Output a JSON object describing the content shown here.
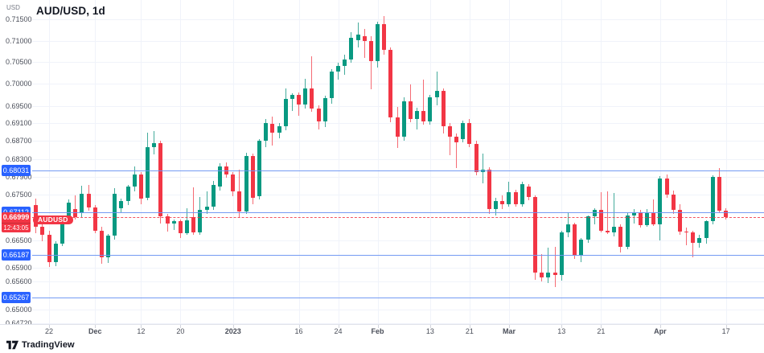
{
  "header": {
    "symbol_title": "AUD/USD, 1d"
  },
  "price_axis": {
    "currency": "USD",
    "ticks": [
      "0.71500",
      "0.71000",
      "0.70500",
      "0.70000",
      "0.69500",
      "0.69100",
      "0.68700",
      "0.68300",
      "0.67900",
      "0.67500",
      "0.66500",
      "0.65900",
      "0.65600",
      "0.65000",
      "0.64720"
    ]
  },
  "time_axis": {
    "ticks": [
      {
        "i": 2,
        "label": "22",
        "bold": false
      },
      {
        "i": 9,
        "label": "Dec",
        "bold": true
      },
      {
        "i": 16,
        "label": "12",
        "bold": false
      },
      {
        "i": 22,
        "label": "20",
        "bold": false
      },
      {
        "i": 30,
        "label": "2023",
        "bold": true
      },
      {
        "i": 40,
        "label": "16",
        "bold": false
      },
      {
        "i": 46,
        "label": "24",
        "bold": false
      },
      {
        "i": 52,
        "label": "Feb",
        "bold": true
      },
      {
        "i": 60,
        "label": "13",
        "bold": false
      },
      {
        "i": 66,
        "label": "21",
        "bold": false
      },
      {
        "i": 72,
        "label": "Mar",
        "bold": true
      },
      {
        "i": 80,
        "label": "13",
        "bold": false
      },
      {
        "i": 86,
        "label": "21",
        "bold": false
      },
      {
        "i": 95,
        "label": "Apr",
        "bold": true
      },
      {
        "i": 105,
        "label": "17",
        "bold": false
      }
    ]
  },
  "price_levels": [
    {
      "label": "0.68031",
      "value": 0.68031
    },
    {
      "label": "0.67112",
      "value": 0.67112
    },
    {
      "label": "0.66187",
      "value": 0.66187
    },
    {
      "label": "0.65267",
      "value": 0.65267
    }
  ],
  "current_price": {
    "label": "0.66999",
    "value": 0.66999,
    "countdown": "12:43:05",
    "symbol_pill": "AUDUSD"
  },
  "footer": {
    "brand": "TradingView"
  },
  "colors": {
    "up": "#089981",
    "down": "#f23645",
    "up_wick": "#45ab9c",
    "down_wick": "#f56b74",
    "level_line": "#6e96f2",
    "badge_blue": "#2962ff",
    "badge_red": "#f23645",
    "grid": "#f0f3fa",
    "axis_text": "#4a4e59",
    "title_text": "#131722"
  },
  "chart_data": {
    "type": "candlestick",
    "symbol": "AUD/USD",
    "interval": "1d",
    "quote_currency": "USD",
    "title": "AUD/USD, 1d",
    "y_range": [
      0.6472,
      0.7157
    ],
    "grid": true,
    "price_scale": "left",
    "horizontal_levels": [
      0.68031,
      0.67112,
      0.66187,
      0.65267
    ],
    "last_price": 0.66999,
    "columns": [
      "date",
      "open",
      "high",
      "low",
      "close"
    ],
    "candles": [
      [
        "Nov 18",
        0.6727,
        0.6742,
        0.6665,
        0.668
      ],
      [
        "Nov 21",
        0.668,
        0.6692,
        0.6648,
        0.6662
      ],
      [
        "Nov 22",
        0.6662,
        0.667,
        0.6592,
        0.6603
      ],
      [
        "Nov 23",
        0.6603,
        0.6648,
        0.6594,
        0.6642
      ],
      [
        "Nov 24",
        0.6642,
        0.67,
        0.6638,
        0.6695
      ],
      [
        "Nov 25",
        0.6695,
        0.674,
        0.669,
        0.6733
      ],
      [
        "Nov 28",
        0.6718,
        0.6748,
        0.6696,
        0.67
      ],
      [
        "Nov 29",
        0.671,
        0.677,
        0.67,
        0.6752
      ],
      [
        "Nov 30",
        0.6752,
        0.6772,
        0.6715,
        0.6722
      ],
      [
        "Dec 1",
        0.6722,
        0.6728,
        0.6666,
        0.667
      ],
      [
        "Dec 2",
        0.667,
        0.668,
        0.6598,
        0.6613
      ],
      [
        "Dec 5",
        0.6613,
        0.6664,
        0.66,
        0.666
      ],
      [
        "Dec 6",
        0.666,
        0.6765,
        0.6652,
        0.6752
      ],
      [
        "Dec 7",
        0.672,
        0.6741,
        0.6712,
        0.6736
      ],
      [
        "Dec 8",
        0.6736,
        0.6772,
        0.6728,
        0.6768
      ],
      [
        "Dec 9",
        0.6768,
        0.6813,
        0.6758,
        0.6795
      ],
      [
        "Dec 12",
        0.6795,
        0.6801,
        0.6729,
        0.6742
      ],
      [
        "Dec 13",
        0.6744,
        0.6889,
        0.6738,
        0.6856
      ],
      [
        "Dec 14",
        0.6856,
        0.6893,
        0.684,
        0.6866
      ],
      [
        "Dec 15",
        0.6866,
        0.6871,
        0.6687,
        0.6702
      ],
      [
        "Dec 16",
        0.6702,
        0.6707,
        0.6669,
        0.6686
      ],
      [
        "Dec 19",
        0.6686,
        0.6695,
        0.6672,
        0.6692
      ],
      [
        "Dec 20",
        0.6692,
        0.6696,
        0.6654,
        0.6665
      ],
      [
        "Dec 21",
        0.6665,
        0.6721,
        0.6661,
        0.6693
      ],
      [
        "Dec 22",
        0.67,
        0.6767,
        0.6662,
        0.6667
      ],
      [
        "Dec 23",
        0.6667,
        0.6745,
        0.6661,
        0.6716
      ],
      [
        "Dec 27",
        0.6716,
        0.6758,
        0.6708,
        0.6723
      ],
      [
        "Dec 28",
        0.6723,
        0.6781,
        0.6716,
        0.6772
      ],
      [
        "Dec 29",
        0.6768,
        0.682,
        0.676,
        0.6813
      ],
      [
        "Dec 30",
        0.6813,
        0.6822,
        0.6788,
        0.6795
      ],
      [
        "Jan 2",
        0.6795,
        0.68,
        0.6746,
        0.6758
      ],
      [
        "Jan 3",
        0.6758,
        0.6806,
        0.6699,
        0.6713
      ],
      [
        "Jan 4",
        0.6713,
        0.6844,
        0.6708,
        0.6837
      ],
      [
        "Jan 5",
        0.6837,
        0.6841,
        0.6729,
        0.6744
      ],
      [
        "Jan 6",
        0.6746,
        0.6875,
        0.674,
        0.6871
      ],
      [
        "Jan 9",
        0.6871,
        0.692,
        0.6856,
        0.691
      ],
      [
        "Jan 10",
        0.6908,
        0.6926,
        0.6859,
        0.6889
      ],
      [
        "Jan 11",
        0.6889,
        0.6911,
        0.6877,
        0.6904
      ],
      [
        "Jan 12",
        0.6904,
        0.6989,
        0.6894,
        0.6965
      ],
      [
        "Jan 13",
        0.6965,
        0.6979,
        0.6938,
        0.6974
      ],
      [
        "Jan 16",
        0.6974,
        0.6981,
        0.6928,
        0.6952
      ],
      [
        "Jan 17",
        0.6952,
        0.7012,
        0.6943,
        0.6989
      ],
      [
        "Jan 18",
        0.6989,
        0.7063,
        0.6936,
        0.6944
      ],
      [
        "Jan 19",
        0.6944,
        0.6951,
        0.6896,
        0.6915
      ],
      [
        "Jan 20",
        0.6915,
        0.6973,
        0.6902,
        0.6967
      ],
      [
        "Jan 23",
        0.6967,
        0.7034,
        0.6955,
        0.7029
      ],
      [
        "Jan 24",
        0.7029,
        0.7049,
        0.701,
        0.7042
      ],
      [
        "Jan 25",
        0.7042,
        0.7067,
        0.7021,
        0.7057
      ],
      [
        "Jan 26",
        0.7057,
        0.7119,
        0.7048,
        0.7106
      ],
      [
        "Jan 27",
        0.7102,
        0.7143,
        0.7084,
        0.7115
      ],
      [
        "Jan 30",
        0.7111,
        0.7127,
        0.706,
        0.71
      ],
      [
        "Jan 31",
        0.71,
        0.7111,
        0.6988,
        0.7053
      ],
      [
        "Feb 1",
        0.7053,
        0.7144,
        0.7038,
        0.7138
      ],
      [
        "Feb 2",
        0.7138,
        0.7157,
        0.7068,
        0.7079
      ],
      [
        "Feb 3",
        0.7079,
        0.7085,
        0.6913,
        0.6924
      ],
      [
        "Feb 6",
        0.6924,
        0.6947,
        0.6854,
        0.6879
      ],
      [
        "Feb 7",
        0.6879,
        0.6969,
        0.6871,
        0.6961
      ],
      [
        "Feb 8",
        0.6961,
        0.6999,
        0.6912,
        0.6919
      ],
      [
        "Feb 9",
        0.6919,
        0.6945,
        0.6897,
        0.6939
      ],
      [
        "Feb 10",
        0.6939,
        0.7009,
        0.6907,
        0.6914
      ],
      [
        "Feb 13",
        0.6914,
        0.6974,
        0.6907,
        0.6969
      ],
      [
        "Feb 14",
        0.6969,
        0.7029,
        0.6951,
        0.6984
      ],
      [
        "Feb 15",
        0.6984,
        0.6989,
        0.6887,
        0.6904
      ],
      [
        "Feb 16",
        0.6904,
        0.6911,
        0.6839,
        0.6879
      ],
      [
        "Feb 17",
        0.6879,
        0.6887,
        0.6809,
        0.6868
      ],
      [
        "Feb 20",
        0.6874,
        0.6917,
        0.6867,
        0.6911
      ],
      [
        "Feb 21",
        0.6911,
        0.6919,
        0.6857,
        0.6864
      ],
      [
        "Feb 22",
        0.6864,
        0.6871,
        0.6794,
        0.6801
      ],
      [
        "Feb 23",
        0.6801,
        0.6841,
        0.6775,
        0.6806
      ],
      [
        "Feb 24",
        0.6806,
        0.6811,
        0.6707,
        0.6719
      ],
      [
        "Feb 27",
        0.6719,
        0.6744,
        0.6704,
        0.6736
      ],
      [
        "Feb 28",
        0.6736,
        0.6749,
        0.6719,
        0.6729
      ],
      [
        "Mar 1",
        0.6729,
        0.6779,
        0.6723,
        0.6756
      ],
      [
        "Mar 2",
        0.6756,
        0.6761,
        0.6723,
        0.6729
      ],
      [
        "Mar 3",
        0.6729,
        0.6779,
        0.6724,
        0.6773
      ],
      [
        "Mar 6",
        0.6769,
        0.6773,
        0.6737,
        0.6745
      ],
      [
        "Mar 7",
        0.6745,
        0.6749,
        0.6565,
        0.6579
      ],
      [
        "Mar 8",
        0.6579,
        0.6619,
        0.6561,
        0.6569
      ],
      [
        "Mar 9",
        0.6569,
        0.6633,
        0.6557,
        0.6579
      ],
      [
        "Mar 10",
        0.6579,
        0.6635,
        0.6549,
        0.6575
      ],
      [
        "Mar 13",
        0.6575,
        0.6671,
        0.6563,
        0.6667
      ],
      [
        "Mar 14",
        0.6667,
        0.6712,
        0.6657,
        0.6685
      ],
      [
        "Mar 15",
        0.6685,
        0.6689,
        0.6609,
        0.6617
      ],
      [
        "Mar 16",
        0.6617,
        0.6654,
        0.6603,
        0.6652
      ],
      [
        "Mar 17",
        0.6652,
        0.6705,
        0.6645,
        0.6703
      ],
      [
        "Mar 20",
        0.6703,
        0.6721,
        0.6685,
        0.6717
      ],
      [
        "Mar 21",
        0.6717,
        0.6755,
        0.6667,
        0.6671
      ],
      [
        "Mar 22",
        0.6671,
        0.6757,
        0.6663,
        0.6667
      ],
      [
        "Mar 23",
        0.6667,
        0.6754,
        0.6659,
        0.6679
      ],
      [
        "Mar 24",
        0.6679,
        0.6684,
        0.6624,
        0.6636
      ],
      [
        "Mar 27",
        0.6636,
        0.6711,
        0.6631,
        0.6704
      ],
      [
        "Mar 28",
        0.6704,
        0.6719,
        0.6687,
        0.6712
      ],
      [
        "Mar 29",
        0.6712,
        0.6717,
        0.6677,
        0.6683
      ],
      [
        "Mar 30",
        0.6683,
        0.6719,
        0.6679,
        0.671
      ],
      [
        "Mar 31",
        0.671,
        0.6739,
        0.6681,
        0.6685
      ],
      [
        "Apr 3",
        0.6685,
        0.6792,
        0.6649,
        0.6786
      ],
      [
        "Apr 4",
        0.6786,
        0.6795,
        0.6743,
        0.675
      ],
      [
        "Apr 5",
        0.675,
        0.6759,
        0.6707,
        0.6716
      ],
      [
        "Apr 6",
        0.6716,
        0.6729,
        0.6661,
        0.6669
      ],
      [
        "Apr 7",
        0.6669,
        0.6677,
        0.6639,
        0.6667
      ],
      [
        "Apr 10",
        0.6667,
        0.6671,
        0.6613,
        0.6645
      ],
      [
        "Apr 11",
        0.6645,
        0.6661,
        0.6633,
        0.6654
      ],
      [
        "Apr 12",
        0.6654,
        0.6694,
        0.6643,
        0.6692
      ],
      [
        "Apr 13",
        0.6692,
        0.6794,
        0.6684,
        0.6789
      ],
      [
        "Apr 14",
        0.6789,
        0.6809,
        0.6709,
        0.6714
      ],
      [
        "Apr 17",
        0.6714,
        0.672,
        0.6695,
        0.66999
      ]
    ]
  }
}
